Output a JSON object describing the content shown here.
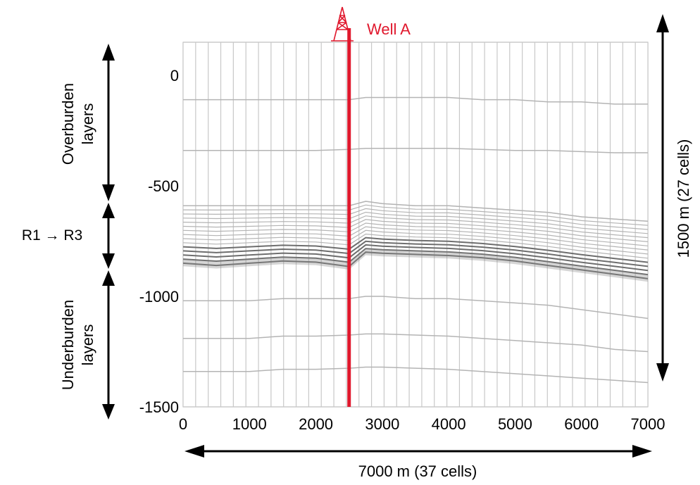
{
  "chart_data": {
    "type": "line",
    "title": "",
    "xlabel": "",
    "ylabel": "",
    "xlim": [
      0,
      7000
    ],
    "ylim": [
      -1500,
      150
    ],
    "x_ticks": [
      0,
      1000,
      2000,
      3000,
      4000,
      5000,
      6000,
      7000
    ],
    "y_ticks": [
      0,
      -500,
      -1000,
      -1500
    ],
    "grid_columns": 37,
    "grid_rows": 27,
    "layer_x": [
      0,
      500,
      1000,
      1500,
      2000,
      2500,
      2750,
      3000,
      3500,
      4000,
      4500,
      5000,
      5500,
      6000,
      6500,
      7000
    ],
    "layers": {
      "overburden": [
        [
          -110,
          -110,
          -110,
          -110,
          -110,
          -110,
          -100,
          -100,
          -100,
          -100,
          -110,
          -110,
          -120,
          -120,
          -130,
          -130
        ],
        [
          -340,
          -340,
          -340,
          -340,
          -340,
          -335,
          -330,
          -330,
          -330,
          -330,
          -335,
          -340,
          -340,
          -345,
          -350,
          -350
        ],
        [
          -590,
          -590,
          -590,
          -590,
          -590,
          -590,
          -570,
          -580,
          -590,
          -590,
          -600,
          -610,
          -620,
          -640,
          -650,
          -660
        ]
      ],
      "reservoir_top": [
        -590,
        -590,
        -590,
        -590,
        -590,
        -590,
        -570,
        -580,
        -590,
        -590,
        -600,
        -610,
        -620,
        -640,
        -650,
        -660
      ],
      "reservoir_base": [
        -850,
        -860,
        -850,
        -840,
        -845,
        -865,
        -800,
        -805,
        -810,
        -815,
        -825,
        -840,
        -860,
        -880,
        -900,
        -920
      ],
      "underburden": [
        [
          -1020,
          -1020,
          -1020,
          -1010,
          -1010,
          -1010,
          -1000,
          -1000,
          -1010,
          -1010,
          -1020,
          -1030,
          -1040,
          -1060,
          -1080,
          -1100
        ],
        [
          -1190,
          -1190,
          -1190,
          -1180,
          -1180,
          -1175,
          -1170,
          -1170,
          -1175,
          -1180,
          -1190,
          -1200,
          -1210,
          -1220,
          -1240,
          -1250
        ],
        [
          -1340,
          -1340,
          -1340,
          -1330,
          -1330,
          -1325,
          -1320,
          -1320,
          -1325,
          -1330,
          -1340,
          -1350,
          -1360,
          -1370,
          -1380,
          -1390
        ]
      ]
    }
  },
  "well": {
    "label": "Well A",
    "x": 2500,
    "color": "#e0182d"
  },
  "annotations": {
    "overburden_label_1": "Overburden",
    "overburden_label_2": "layers",
    "reservoir_label": "R1 → R3",
    "underburden_label_1": "Underburden",
    "underburden_label_2": "layers",
    "height_label": "1500 m (27 cells)",
    "width_label": "7000 m (37 cells)"
  },
  "colors": {
    "grid": "#c8c8c8",
    "horizon": "#b4b4b4",
    "reservoir": "#6e6e6e",
    "arrow": "#000000"
  }
}
